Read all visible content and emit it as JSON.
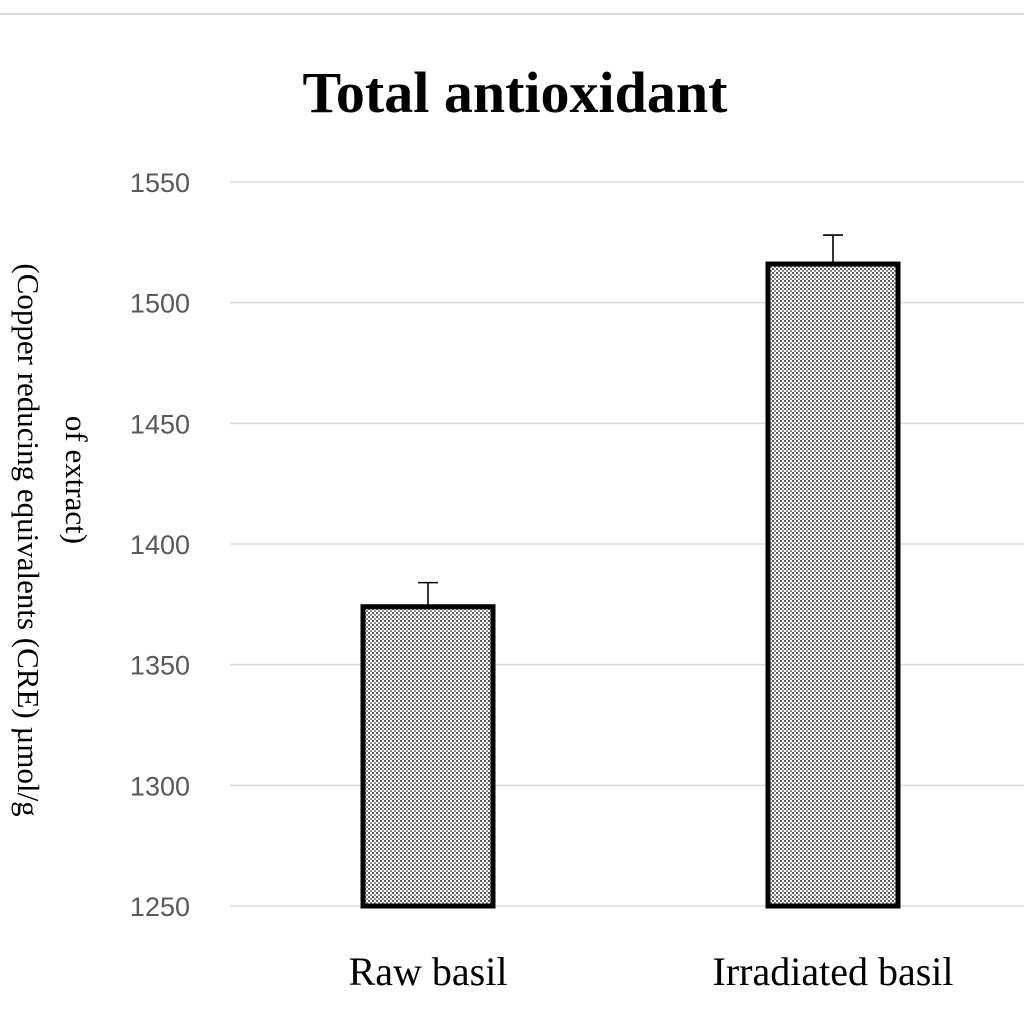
{
  "chart_data": {
    "type": "bar",
    "title": "Total antioxidant",
    "ylabel_lines": [
      "(Copper reducing equivalents (CRE) µmol/g",
      "of extract)"
    ],
    "categories": [
      "Raw basil",
      "Irradiated basil"
    ],
    "values": [
      1374,
      1516
    ],
    "errors": [
      10,
      12
    ],
    "ylim": [
      1250,
      1550
    ],
    "yticks": [
      1250,
      1300,
      1350,
      1400,
      1450,
      1500,
      1550
    ],
    "grid": true,
    "bar_fill": "dotted gray",
    "bar_outline": "#000000"
  }
}
